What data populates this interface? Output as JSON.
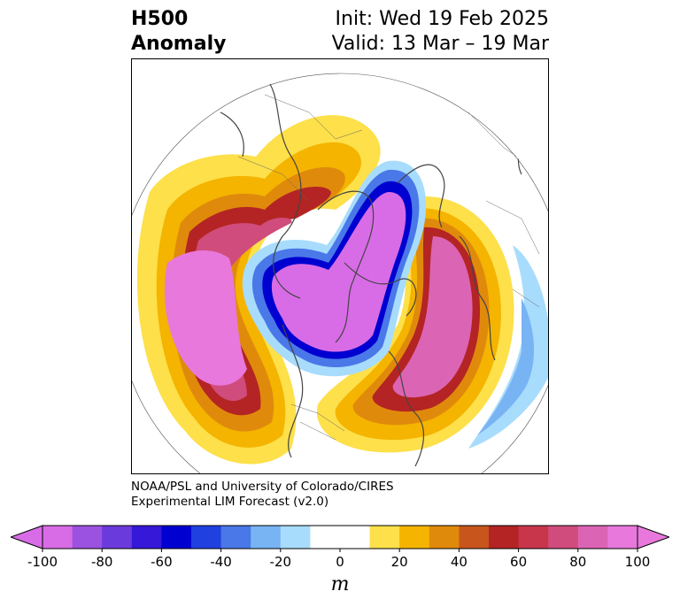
{
  "title": {
    "left_line1": "H500",
    "left_line2": "Anomaly",
    "right_line1": "Init: Wed 19 Feb 2025",
    "right_line2": "Valid: 13 Mar – 19 Mar"
  },
  "credit": {
    "line1": "NOAA/PSL and University of Colorado/CIRES",
    "line2": "Experimental LIM Forecast (v2.0)"
  },
  "colorbar": {
    "unit": "m",
    "ticks": [
      "-100",
      "-80",
      "-60",
      "-40",
      "-20",
      "0",
      "20",
      "40",
      "60",
      "80",
      "100"
    ],
    "colors": [
      "#d86ce6",
      "#9c52e0",
      "#6b3adc",
      "#3518d8",
      "#0000d0",
      "#2040e0",
      "#4a78e8",
      "#78b4f4",
      "#a8dcfc",
      "#ffffff",
      "#ffffff",
      "#fde04a",
      "#f4b400",
      "#e08a0c",
      "#c8561c",
      "#b42424",
      "#c8364c",
      "#d04c7c",
      "#dc64b4",
      "#e878dc"
    ],
    "low_extend_color": "#d86ce6",
    "high_extend_color": "#e878dc"
  }
}
